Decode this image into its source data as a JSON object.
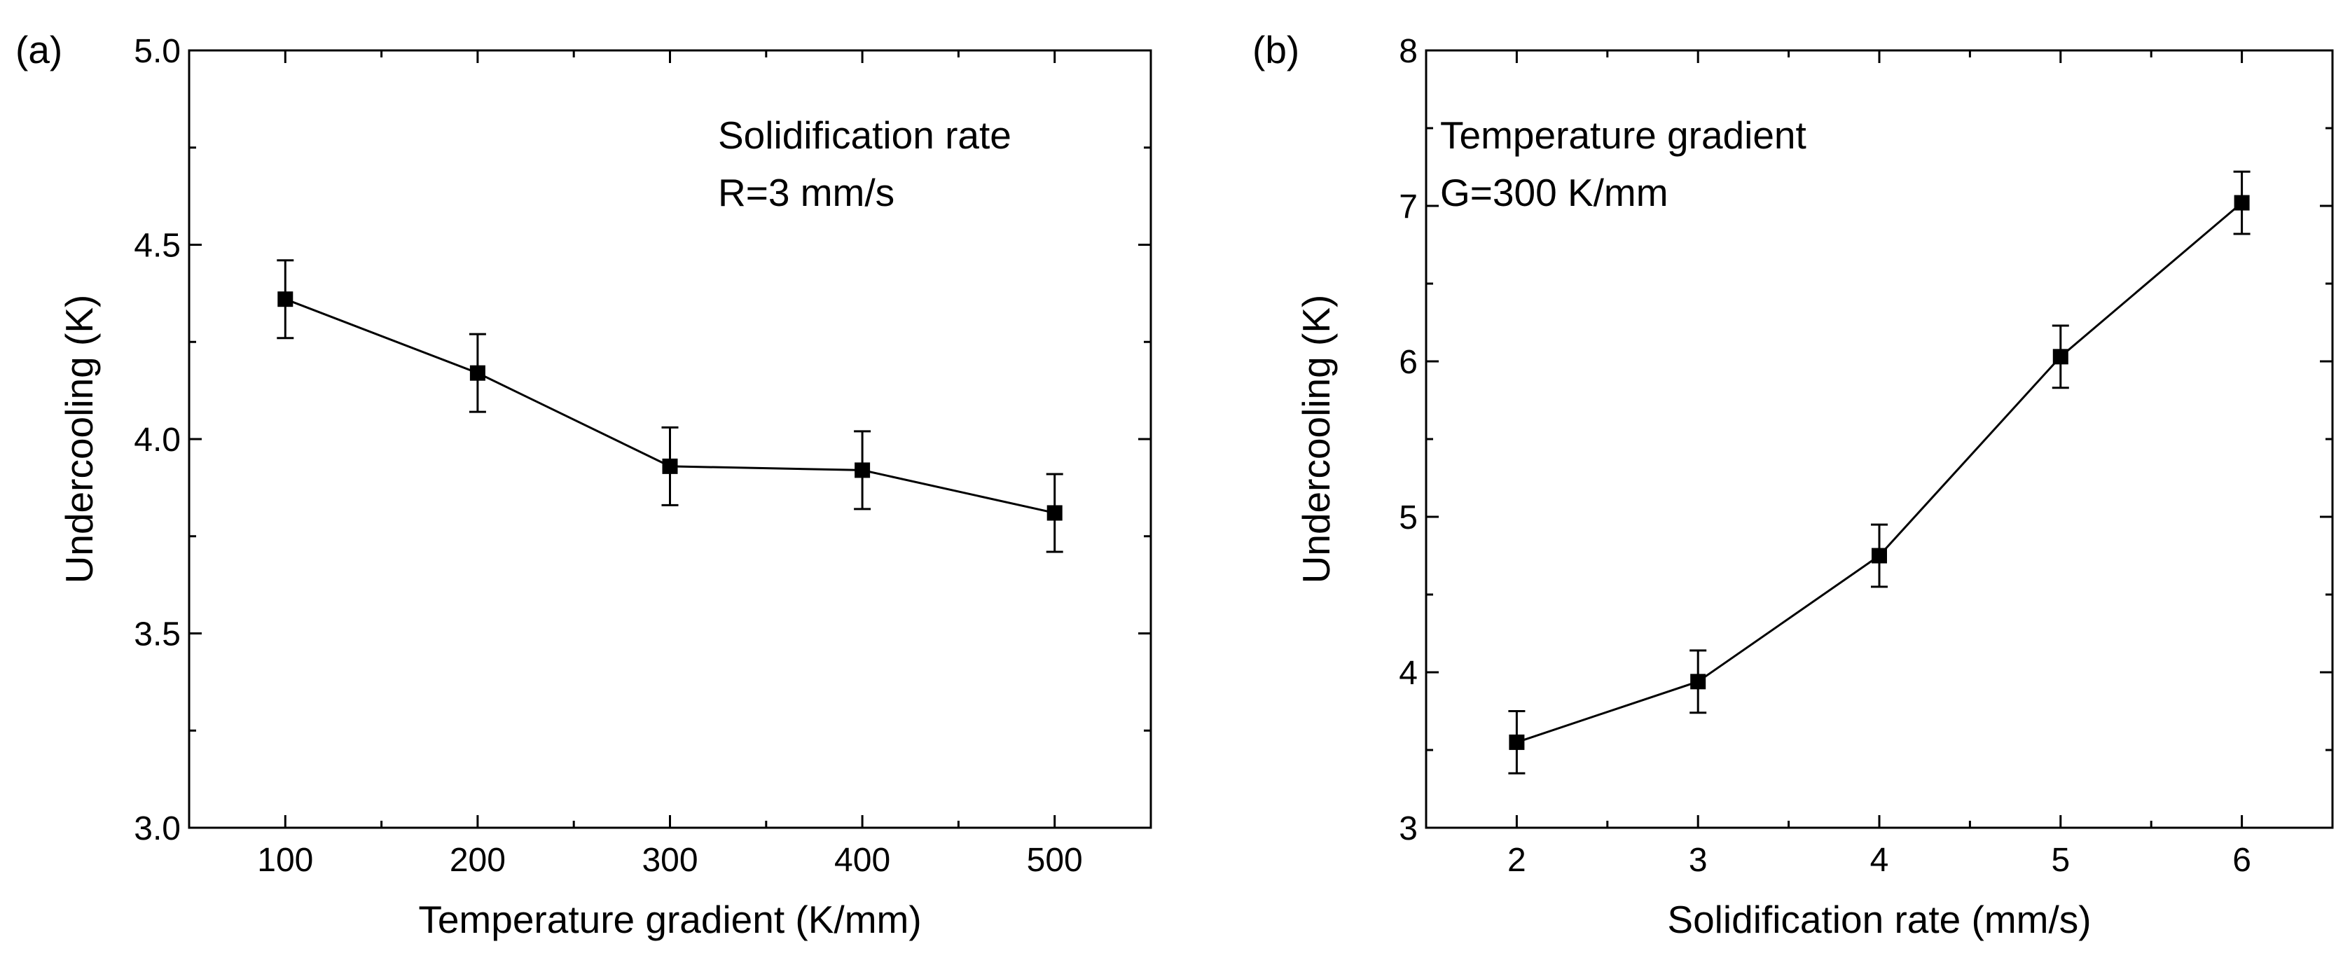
{
  "chart_data": [
    {
      "type": "line",
      "panel_label": "(a)",
      "title": "",
      "annotation": [
        "Solidification rate",
        "R=3 mm/s"
      ],
      "xlabel": "Temperature gradient (K/mm)",
      "ylabel": "Undercooling (K)",
      "xlim": [
        50,
        550
      ],
      "ylim": [
        3.0,
        5.0
      ],
      "xticks": [
        100,
        200,
        300,
        400,
        500
      ],
      "xtick_labels": [
        "100",
        "200",
        "300",
        "400",
        "500"
      ],
      "yticks": [
        3.0,
        3.5,
        4.0,
        4.5,
        5.0
      ],
      "ytick_labels": [
        "3.0",
        "3.5",
        "4.0",
        "4.5",
        "5.0"
      ],
      "series": [
        {
          "name": "Undercooling",
          "x": [
            100,
            200,
            300,
            400,
            500
          ],
          "y": [
            4.36,
            4.17,
            3.93,
            3.92,
            3.81
          ],
          "error": [
            0.1,
            0.1,
            0.1,
            0.1,
            0.1
          ]
        }
      ]
    },
    {
      "type": "line",
      "panel_label": "(b)",
      "title": "",
      "annotation": [
        "Temperature gradient",
        "G=300 K/mm"
      ],
      "xlabel": "Solidification rate (mm/s)",
      "ylabel": "Undercooling (K)",
      "xlim": [
        1.5,
        6.5
      ],
      "ylim": [
        3,
        8
      ],
      "xticks": [
        2,
        3,
        4,
        5,
        6
      ],
      "xtick_labels": [
        "2",
        "3",
        "4",
        "5",
        "6"
      ],
      "yticks": [
        3,
        4,
        5,
        6,
        7,
        8
      ],
      "ytick_labels": [
        "3",
        "4",
        "5",
        "6",
        "7",
        "8"
      ],
      "series": [
        {
          "name": "Undercooling",
          "x": [
            2,
            3,
            4,
            5,
            6
          ],
          "y": [
            3.55,
            3.94,
            4.75,
            6.03,
            7.02
          ],
          "error": [
            0.2,
            0.2,
            0.2,
            0.2,
            0.2
          ]
        }
      ]
    }
  ]
}
